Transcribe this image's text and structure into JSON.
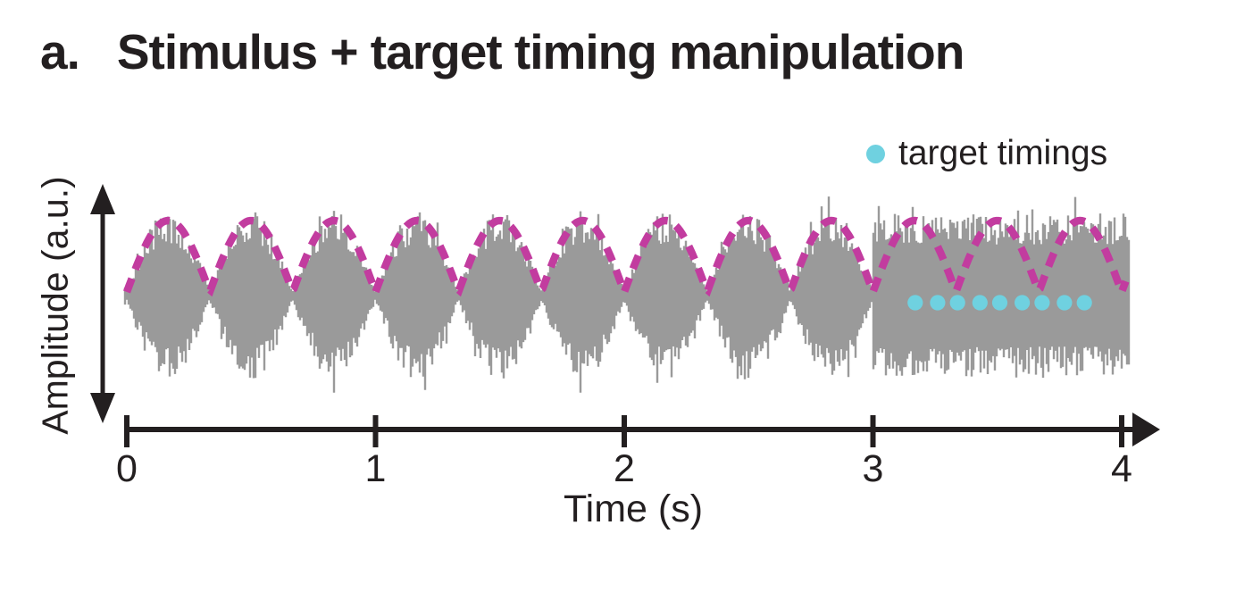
{
  "title": {
    "index": "a.",
    "text": "Stimulus + target timing manipulation"
  },
  "legend": {
    "label": "target timings",
    "marker": "dot"
  },
  "colors": {
    "text": "#231F20",
    "axis": "#231F20",
    "noise": "#9A9A9A",
    "envelope": "#C23C9F",
    "targets": "#6FD1E0"
  },
  "chart_data": {
    "type": "line",
    "title": "Stimulus + target timing manipulation",
    "xlabel": "Time (s)",
    "ylabel": "Amplitude (a.u.)",
    "x_range_s": [
      0,
      4
    ],
    "x_ticks": [
      0,
      1,
      2,
      3,
      4
    ],
    "grid": false,
    "legend_position": "top-right",
    "series": [
      {
        "name": "stimulus-noise",
        "style": "filled-noise-waveform",
        "color_key": "noise",
        "description": "broadband noise carrier; 3 Hz amplitude-modulated from 0 to 3 s, constant (unmodulated) amplitude from 3 to 4 s",
        "am_rate_hz": 3,
        "modulated_interval_s": [
          0,
          3
        ],
        "unmodulated_interval_s": [
          3,
          4.03
        ]
      },
      {
        "name": "amplitude-envelope",
        "style": "dashed-line",
        "color_key": "envelope",
        "shape": "rectified-sine",
        "rate_hz": 3,
        "interval_s": [
          0,
          4.02
        ]
      },
      {
        "name": "target timings",
        "style": "dots",
        "color_key": "targets",
        "times_s": [
          3.17,
          3.26,
          3.34,
          3.43,
          3.51,
          3.6,
          3.68,
          3.77,
          3.85
        ]
      }
    ]
  }
}
